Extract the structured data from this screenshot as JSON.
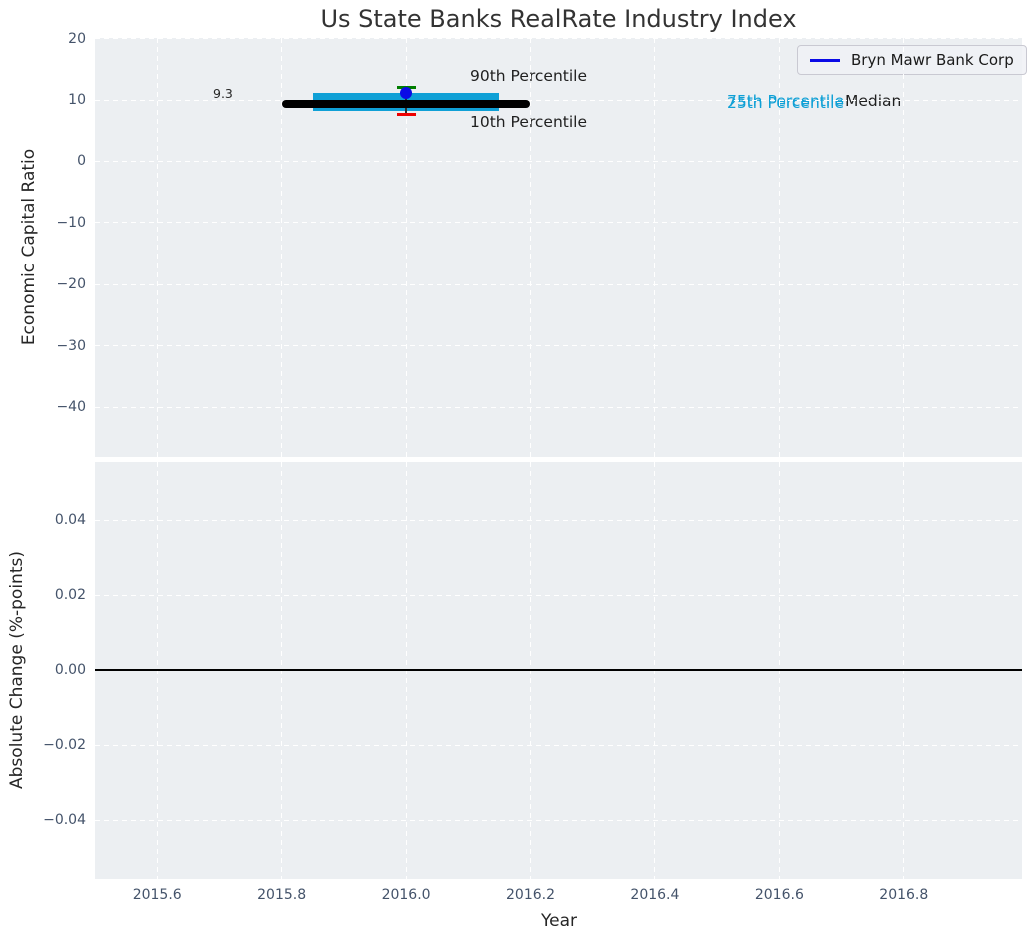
{
  "figure": {
    "legend": {
      "label": "Bryn Mawr Bank Corp",
      "position": "upper right"
    },
    "colors": {
      "plot_bg": "#ECEFF2",
      "grid": "#FFFFFF",
      "tick_label": "#44536A",
      "text": "#262626",
      "title": "#333333",
      "percentile_band": "#0FA0D6",
      "median": "#000000",
      "p90_cap": "#007D00",
      "p10_cap": "#ED0000",
      "company": "#0A0AE6",
      "zero_line": "#000000"
    }
  },
  "chart_data": [
    {
      "type": "box",
      "title": "Us State Banks RealRate Industry Index",
      "xlabel": "Year",
      "ylabel": "Economic Capital Ratio",
      "xlim": [
        2015.5,
        2016.99
      ],
      "ylim": [
        -48.1,
        20.1
      ],
      "grid": true,
      "legend_position": "upper right",
      "xticks": [
        {
          "v": 2015.6,
          "label": "2015.6"
        },
        {
          "v": 2015.8,
          "label": "2015.8"
        },
        {
          "v": 2016.0,
          "label": "2016.0"
        },
        {
          "v": 2016.2,
          "label": "2016.2"
        },
        {
          "v": 2016.4,
          "label": "2016.4"
        },
        {
          "v": 2016.6,
          "label": "2016.6"
        },
        {
          "v": 2016.8,
          "label": "2016.8"
        }
      ],
      "yticks": [
        {
          "v": 20,
          "label": "20"
        },
        {
          "v": 10,
          "label": "10"
        },
        {
          "v": 0,
          "label": "0"
        },
        {
          "v": -10,
          "label": "−10"
        },
        {
          "v": -20,
          "label": "−20"
        },
        {
          "v": -30,
          "label": "−30"
        },
        {
          "v": -40,
          "label": "−40"
        }
      ],
      "period": {
        "x": 2016.0,
        "median": 9.3,
        "median_label": "9.3",
        "median_span_x": [
          2015.8,
          2016.2
        ],
        "band_span_x": [
          2015.85,
          2016.15
        ],
        "p75": 11.2,
        "p25": 8.2,
        "p90": 12.1,
        "p10": 7.6
      },
      "company_series": {
        "name": "Bryn Mawr Bank Corp",
        "points": [
          {
            "x": 2016.0,
            "y": 11.1
          }
        ]
      },
      "annotations": {
        "p90": "90th Percentile",
        "p10": "10th Percentile",
        "p75": "75th Percentile",
        "p25": "25th Percentile",
        "median": "Median"
      }
    },
    {
      "type": "line",
      "xlabel": "Year",
      "ylabel": "Absolute Change (%-points)",
      "xlim": [
        2015.5,
        2016.99
      ],
      "ylim": [
        -0.0557,
        0.0555
      ],
      "grid": true,
      "zero_line": 0.0,
      "series": [],
      "yticks": [
        {
          "v": 0.04,
          "label": "0.04"
        },
        {
          "v": 0.02,
          "label": "0.02"
        },
        {
          "v": 0.0,
          "label": "0.00"
        },
        {
          "v": -0.02,
          "label": "−0.02"
        },
        {
          "v": -0.04,
          "label": "−0.04"
        }
      ]
    }
  ]
}
